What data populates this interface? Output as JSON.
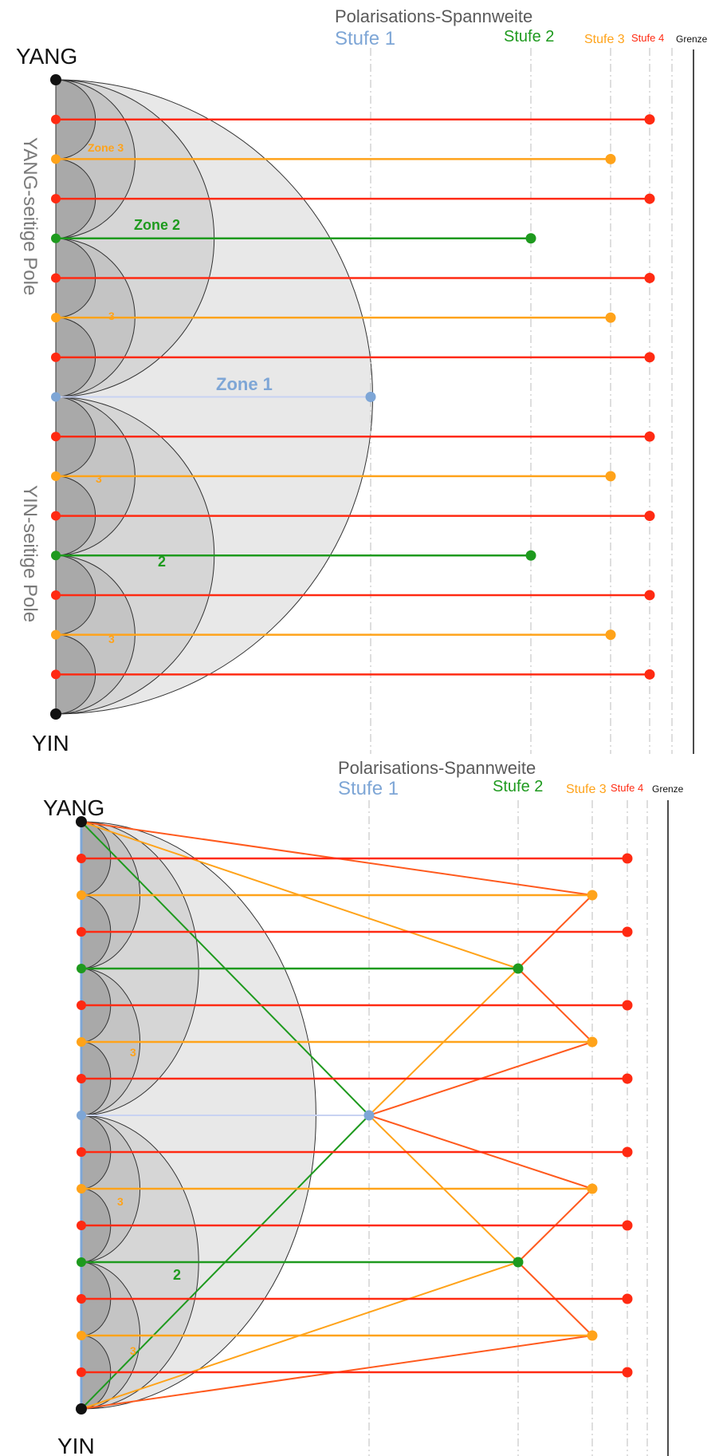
{
  "colors": {
    "stufe1": "#7ea6d6",
    "stufe1_line": "#c8d2f2",
    "stufe2": "#1e9a1e",
    "stufe3": "#ffa31a",
    "stufe4": "#ff2a12",
    "orange_red": "#ff5a1e",
    "grenze": "#111111",
    "ring_light": "#e8e8e8",
    "ring_mid": "#d6d6d6",
    "ring_dark": "#c4c4c4",
    "ring_darkest": "#a9a9a9",
    "dash": "#bdbdbd"
  },
  "top": {
    "title": "Polarisations-Spannweite",
    "stufe1": "Stufe 1",
    "stufe2": "Stufe 2",
    "stufe3": "Stufe 3",
    "stufe4": "Stufe 4",
    "grenze": "Grenze",
    "yang": "YANG",
    "yin": "YIN",
    "yang_side": "YANG-seitige Pole",
    "yin_side": "YIN-seitige Pole",
    "zone1": "Zone 1",
    "zone2": "Zone 2",
    "zone3": "Zone 3",
    "label2": "2",
    "label3a": "3",
    "label3b": "3",
    "label3c": "3"
  },
  "bottom": {
    "title": "Polarisations-Spannweite",
    "stufe1": "Stufe 1",
    "stufe2": "Stufe 2",
    "stufe3": "Stufe 3",
    "stufe4": "Stufe 4",
    "grenze": "Grenze",
    "yang": "YANG",
    "yin": "YIN",
    "label2": "2",
    "label3a": "3",
    "label3b": "3",
    "label3c": "3"
  },
  "levels": [
    0,
    4,
    3,
    4,
    2,
    4,
    3,
    4,
    1,
    4,
    3,
    4,
    2,
    4,
    3,
    4,
    0
  ]
}
